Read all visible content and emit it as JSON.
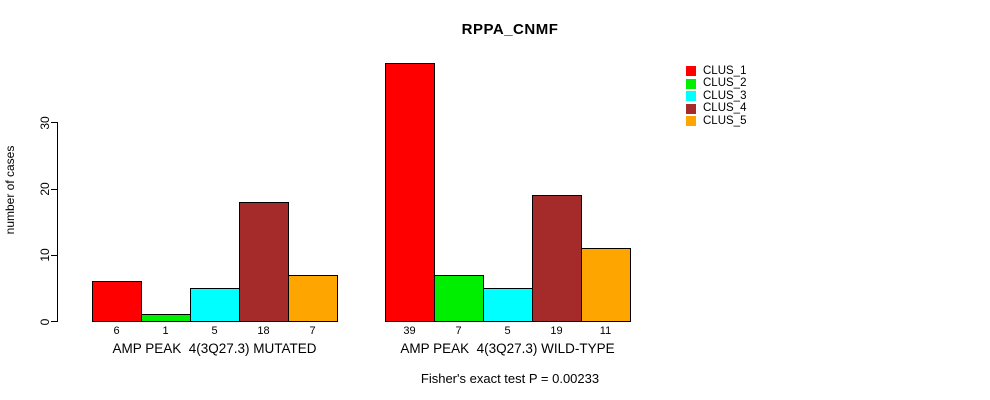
{
  "chart_data": {
    "type": "bar",
    "title": "RPPA_CNMF",
    "ylabel": "number of cases",
    "xlabel": "",
    "yticks": [
      0,
      10,
      20,
      30
    ],
    "ylim": [
      0,
      39
    ],
    "grid": false,
    "legend_position": "top-right",
    "categories": [
      "AMP PEAK  4(3Q27.3) MUTATED",
      "AMP PEAK  4(3Q27.3) WILD-TYPE"
    ],
    "series": [
      {
        "name": "CLUS_1",
        "color": "#FF0000",
        "values": [
          6,
          39
        ]
      },
      {
        "name": "CLUS_2",
        "color": "#00EE00",
        "values": [
          1,
          7
        ]
      },
      {
        "name": "CLUS_3",
        "color": "#00FFFF",
        "values": [
          5,
          5
        ]
      },
      {
        "name": "CLUS_4",
        "color": "#A52A2A",
        "values": [
          18,
          19
        ]
      },
      {
        "name": "CLUS_5",
        "color": "#FFA500",
        "values": [
          7,
          11
        ]
      }
    ],
    "annotation": "Fisher's exact test P = 0.00233",
    "axis_color": "#000000",
    "bar_border_color": "#000000"
  }
}
